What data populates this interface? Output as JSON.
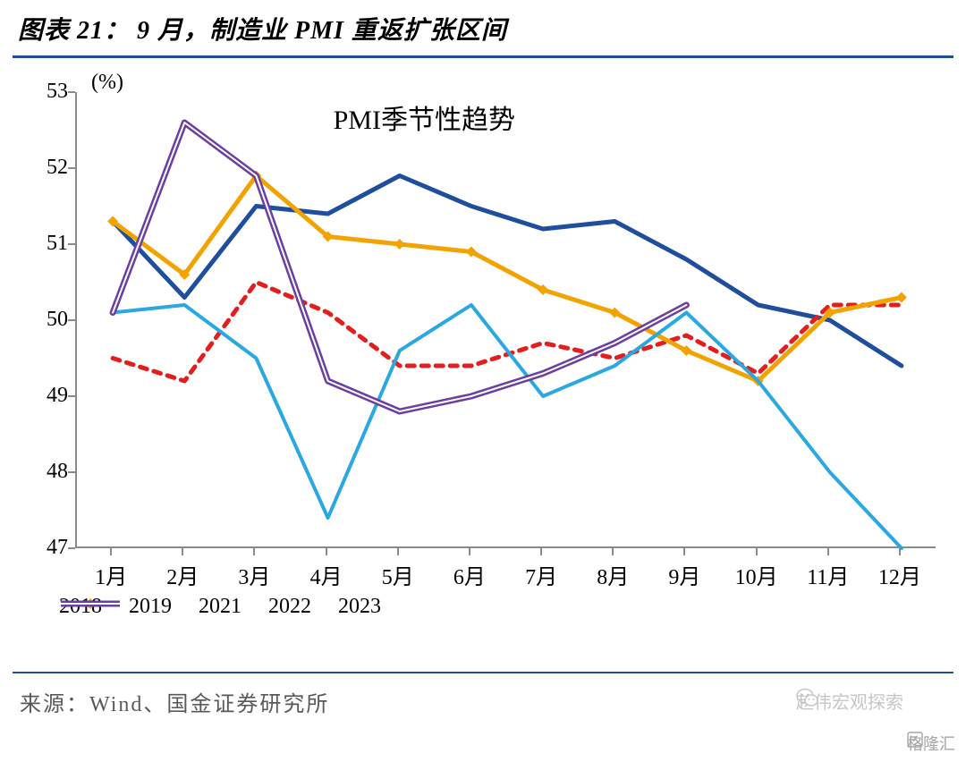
{
  "figure_title": "图表 21：  9 月，制造业 PMI 重返扩张区间",
  "chart": {
    "type": "line",
    "inner_title": "PMI季节性趋势",
    "y_unit_label": "(%)",
    "background_color": "#ffffff",
    "axis_color": "#8a8a8a",
    "title_fontsize": 30,
    "axis_label_fontsize": 24,
    "y": {
      "min": 47,
      "max": 53,
      "ticks": [
        47,
        48,
        49,
        50,
        51,
        52,
        53
      ]
    },
    "x": {
      "categories": [
        "1月",
        "2月",
        "3月",
        "4月",
        "5月",
        "6月",
        "7月",
        "8月",
        "9月",
        "10月",
        "11月",
        "12月"
      ]
    },
    "series": [
      {
        "name": "2018",
        "color": "#1e4e9c",
        "line_width": 5,
        "dash": "none",
        "marker": "none",
        "values": [
          51.3,
          50.3,
          51.5,
          51.4,
          51.9,
          51.5,
          51.2,
          51.3,
          50.8,
          50.2,
          50.0,
          49.4
        ]
      },
      {
        "name": "2019",
        "color": "#e21e1e",
        "line_width": 5,
        "dash": "8,8",
        "marker": "none",
        "values": [
          49.5,
          49.2,
          50.5,
          50.1,
          49.4,
          49.4,
          49.7,
          49.5,
          49.8,
          49.3,
          50.2,
          50.2
        ]
      },
      {
        "name": "2021",
        "color": "#f2a300",
        "line_width": 5,
        "dash": "none",
        "marker": "diamond",
        "marker_size": 12,
        "values": [
          51.3,
          50.6,
          51.9,
          51.1,
          51.0,
          50.9,
          50.4,
          50.1,
          49.6,
          49.2,
          50.1,
          50.3
        ]
      },
      {
        "name": "2022",
        "color": "#2aa8e0",
        "line_width": 4,
        "dash": "none",
        "marker": "none",
        "values": [
          50.1,
          50.2,
          49.5,
          47.4,
          49.6,
          50.2,
          49.0,
          49.4,
          50.1,
          49.2,
          48.0,
          47.0
        ]
      },
      {
        "name": "2023",
        "color": "#6b3fa0",
        "line_width": 2,
        "dash": "none",
        "double": true,
        "marker": "none",
        "values": [
          50.1,
          52.6,
          51.9,
          49.2,
          48.8,
          49.0,
          49.3,
          49.7,
          50.2,
          null,
          null,
          null
        ]
      }
    ],
    "legend": {
      "fontsize": 24
    }
  },
  "source_label": "来源：Wind、国金证券研究所",
  "watermark_wechat": "赵伟宏观探索",
  "watermark_gelonghui": "格隆汇",
  "colors": {
    "title_rule": "#1e4e9c",
    "source_text": "#595959",
    "watermark": "#bdbdbd"
  }
}
